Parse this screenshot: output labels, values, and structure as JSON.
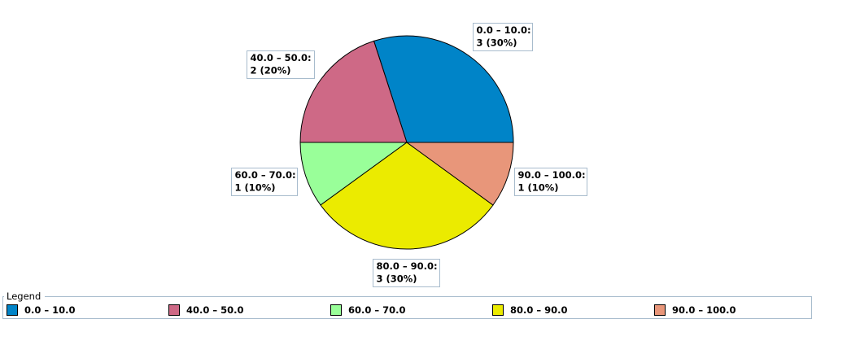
{
  "chart_data": {
    "type": "pie",
    "title": "",
    "categories": [
      "0.0 - 10.0",
      "40.0 - 50.0",
      "60.0 - 70.0",
      "80.0 - 90.0",
      "90.0 - 100.0"
    ],
    "values": [
      3,
      2,
      1,
      3,
      1
    ],
    "percents": [
      "30%",
      "20%",
      "10%",
      "30%",
      "10%"
    ],
    "slice_labels": [
      [
        "0.0 – 10.0:",
        "3 (30%)"
      ],
      [
        "40.0 – 50.0:",
        "2 (20%)"
      ],
      [
        "60.0 – 70.0:",
        "1 (10%)"
      ],
      [
        "80.0 – 90.0:",
        "3 (30%)"
      ],
      [
        "90.0 – 100.0:",
        "1 (10%)"
      ]
    ],
    "colors": [
      "#0084c8",
      "#ce6986",
      "#99ff99",
      "#ebeb00",
      "#e8967a"
    ],
    "start_angle_deg": 0,
    "direction": "counterclockwise",
    "legend": {
      "title": "Legend",
      "position": "bottom",
      "entries": [
        "0.0 – 10.0",
        "40.0 – 50.0",
        "60.0 – 70.0",
        "80.0 – 90.0",
        "90.0 – 100.0"
      ]
    }
  }
}
